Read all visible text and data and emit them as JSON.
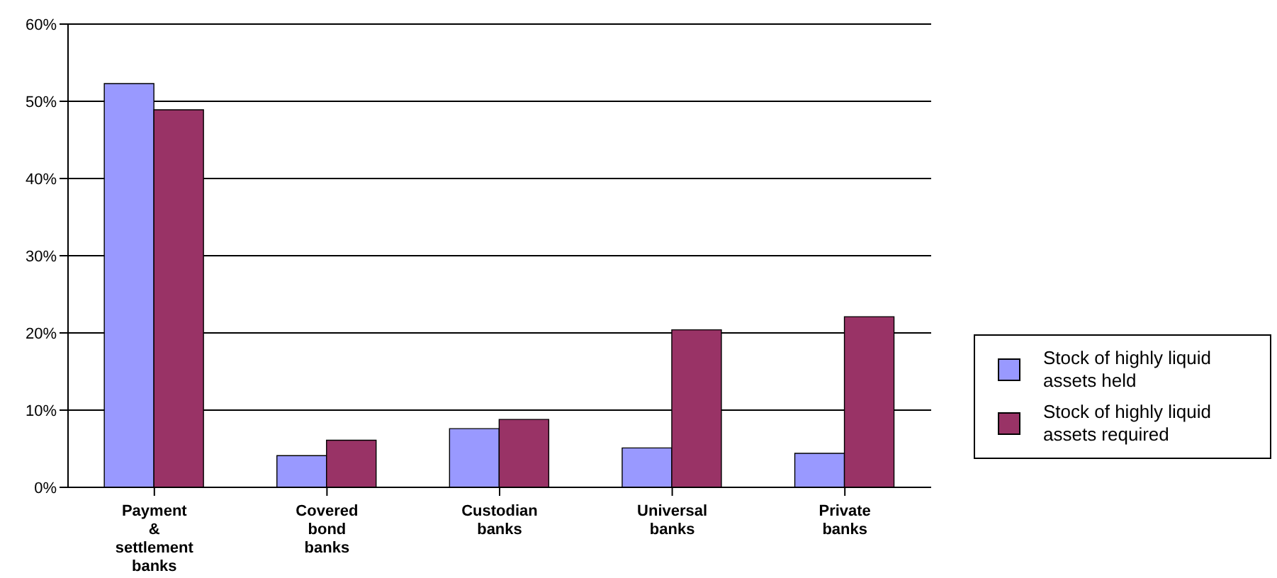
{
  "chart_data": {
    "type": "bar",
    "categories": [
      "Payment & settlement banks",
      "Covered bond banks",
      "Custodian banks",
      "Universal banks",
      "Private banks"
    ],
    "series": [
      {
        "name": "Stock of highly liquid assets held",
        "color": "#9999ff",
        "values": [
          52.3,
          4.1,
          7.6,
          5.1,
          4.4
        ]
      },
      {
        "name": "Stock of highly liquid assets required",
        "color": "#993366",
        "values": [
          48.9,
          6.1,
          8.8,
          20.4,
          22.1
        ]
      }
    ],
    "ylim": [
      0,
      60
    ],
    "yticks": [
      {
        "value": 0,
        "label": "0%"
      },
      {
        "value": 10,
        "label": "10%"
      },
      {
        "value": 20,
        "label": "20%"
      },
      {
        "value": 30,
        "label": "30%"
      },
      {
        "value": 40,
        "label": "40%"
      },
      {
        "value": 50,
        "label": "50%"
      },
      {
        "value": 60,
        "label": "60%"
      }
    ],
    "grid": "y",
    "legend": "right"
  }
}
